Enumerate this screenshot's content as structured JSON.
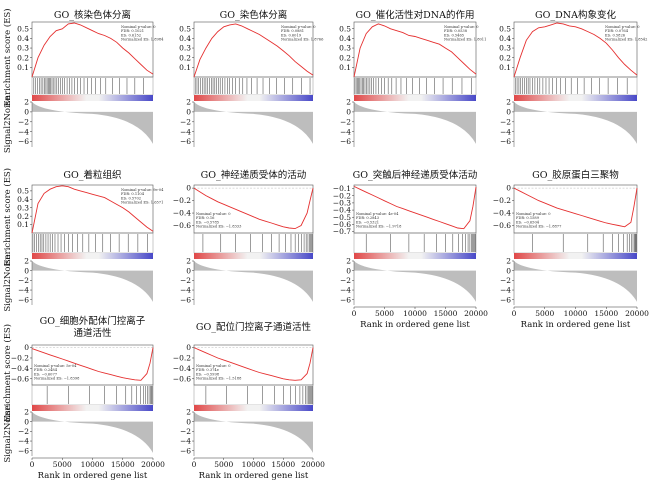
{
  "common": {
    "y_label_es": "Enrichment score (ES)",
    "y_label_noise": "Signal2Noise",
    "x_label": "Rank in ordered gene list",
    "x_ticks": [
      "0",
      "5000",
      "10000",
      "15000",
      "20000"
    ],
    "x_ticks_panel10": [
      "0",
      "5000",
      "10000",
      "15000",
      "20000"
    ],
    "noise_ticks": [
      "2",
      "0",
      "−2",
      "−4",
      "−6"
    ],
    "colors": {
      "curve": "#e53030",
      "noise_fill": "#bdbdbd",
      "ribbon_pos": "#e04848",
      "ribbon_neg": "#4848c8"
    }
  },
  "chart_data": [
    {
      "type": "line",
      "title": "GO_核染色体分离",
      "xlabel": "Rank in ordered gene list",
      "ylabel": "Enrichment score (ES)",
      "xlim": [
        0,
        20000
      ],
      "ylim": [
        0,
        0.57
      ],
      "y_ticks": [
        "0.5",
        "0.4",
        "0.3",
        "0.2",
        "0.1"
      ],
      "stats": [
        "Nominal p-value: 0",
        "FDR: 0.1021",
        "ES: 0.6152",
        "Normalized ES: 1.8984"
      ],
      "x": [
        0,
        1000,
        2000,
        3000,
        4000,
        5000,
        6000,
        7000,
        8000,
        9000,
        10000,
        11000,
        12000,
        13000,
        14000,
        15000,
        16000,
        17000,
        18000,
        19000,
        20000
      ],
      "es": [
        0.0,
        0.2,
        0.33,
        0.42,
        0.48,
        0.5,
        0.55,
        0.56,
        0.54,
        0.51,
        0.48,
        0.45,
        0.43,
        0.4,
        0.36,
        0.3,
        0.25,
        0.19,
        0.13,
        0.07,
        0.03
      ],
      "hits": [
        300,
        600,
        900,
        1200,
        1500,
        1800,
        2100,
        2300,
        2500,
        2700,
        2900,
        3100,
        3300,
        3500,
        3800,
        4100,
        4400,
        4700,
        5000,
        5400,
        5800,
        6200,
        6600,
        7000,
        7500,
        8000,
        8600,
        9200,
        9800,
        10500,
        11300,
        12200,
        13300,
        14500,
        15700,
        17000,
        18400
      ]
    },
    {
      "type": "line",
      "title": "GO_染色体分离",
      "xlabel": "Rank in ordered gene list",
      "ylabel": "Enrichment score (ES)",
      "xlim": [
        0,
        20000
      ],
      "ylim": [
        0,
        0.57
      ],
      "y_ticks": [
        "0.5",
        "0.4",
        "0.3",
        "0.2",
        "0.1"
      ],
      "stats": [
        "Nominal p-value: 0",
        "FDR: 0.0881",
        "ES: 0.6019",
        "Normalized ES: 1.8766"
      ],
      "x": [
        0,
        1000,
        2000,
        3000,
        4000,
        5000,
        6000,
        7000,
        8000,
        9000,
        10000,
        11000,
        12000,
        13000,
        14000,
        15000,
        16000,
        17000,
        18000,
        19000,
        20000
      ],
      "es": [
        0.0,
        0.18,
        0.3,
        0.4,
        0.47,
        0.52,
        0.54,
        0.55,
        0.53,
        0.5,
        0.47,
        0.44,
        0.4,
        0.36,
        0.32,
        0.27,
        0.22,
        0.16,
        0.11,
        0.06,
        0.02
      ],
      "hits": [
        200,
        500,
        800,
        1100,
        1400,
        1700,
        2000,
        2300,
        2600,
        2900,
        3200,
        3500,
        3800,
        4100,
        4400,
        4800,
        5200,
        5600,
        6000,
        6500,
        7000,
        7600,
        8200,
        8900,
        9700,
        10600,
        11600,
        12700,
        13900,
        15200,
        16600,
        18100,
        19500
      ]
    },
    {
      "type": "line",
      "title": "GO_催化活性对DNA的作用",
      "xlabel": "Rank in ordered gene list",
      "ylabel": "Enrichment score (ES)",
      "xlim": [
        0,
        20000
      ],
      "ylim": [
        0,
        0.57
      ],
      "y_ticks": [
        "0.5",
        "0.4",
        "0.3",
        "0.2",
        "0.1"
      ],
      "stats": [
        "Nominal p-value: 0",
        "FDR: 0.0538",
        "ES: 0.5465",
        "Normalized ES: 1.8011"
      ],
      "x": [
        0,
        1000,
        2000,
        3000,
        4000,
        5000,
        6000,
        7000,
        8000,
        9000,
        10000,
        11000,
        12000,
        13000,
        14000,
        15000,
        16000,
        17000,
        18000,
        19000,
        20000
      ],
      "es": [
        0.0,
        0.3,
        0.45,
        0.52,
        0.55,
        0.53,
        0.5,
        0.48,
        0.46,
        0.43,
        0.42,
        0.4,
        0.38,
        0.36,
        0.34,
        0.3,
        0.26,
        0.2,
        0.14,
        0.08,
        0.03
      ],
      "hits": [
        150,
        350,
        550,
        750,
        950,
        1150,
        1350,
        1550,
        1800,
        2050,
        2300,
        2600,
        2900,
        3200,
        3600,
        4000,
        4500,
        5000,
        5600,
        6200,
        6900,
        7700,
        8600,
        9600,
        10700,
        11900,
        13200,
        14600,
        16100,
        17700,
        19300
      ]
    },
    {
      "type": "line",
      "title": "GO_DNA构象变化",
      "xlabel": "Rank in ordered gene list",
      "ylabel": "Enrichment score (ES)",
      "xlim": [
        0,
        20000
      ],
      "ylim": [
        0,
        0.57
      ],
      "y_ticks": [
        "0.5",
        "0.4",
        "0.3",
        "0.2",
        "0.1"
      ],
      "stats": [
        "Nominal p-value: 0",
        "FDR: 0.0764",
        "ES: 0.5826",
        "Normalized ES: 1.8542"
      ],
      "x": [
        0,
        1000,
        2000,
        3000,
        4000,
        5000,
        6000,
        7000,
        8000,
        9000,
        10000,
        11000,
        12000,
        13000,
        14000,
        15000,
        16000,
        17000,
        18000,
        19000,
        20000
      ],
      "es": [
        0.0,
        0.2,
        0.38,
        0.47,
        0.51,
        0.52,
        0.54,
        0.56,
        0.55,
        0.53,
        0.52,
        0.5,
        0.47,
        0.44,
        0.4,
        0.35,
        0.28,
        0.2,
        0.13,
        0.07,
        0.02
      ],
      "hits": [
        200,
        500,
        800,
        1100,
        1400,
        1700,
        2000,
        2300,
        2600,
        3000,
        3400,
        3800,
        4200,
        4700,
        5200,
        5700,
        6300,
        6900,
        7600,
        8400,
        9300,
        10300,
        11400,
        12600,
        13900,
        15300,
        16800,
        18400
      ]
    },
    {
      "type": "line",
      "title": "GO_着粒组织",
      "xlabel": "Rank in ordered gene list",
      "ylabel": "Enrichment score (ES)",
      "xlim": [
        0,
        20000
      ],
      "ylim": [
        0,
        0.57
      ],
      "y_ticks": [
        "0.5",
        "0.4",
        "0.3",
        "0.2",
        "0.1"
      ],
      "stats": [
        "Nominal p-value: 9e-04",
        "FDR: 0.1104",
        "ES: 0.5702",
        "Normalized ES: 1.6571"
      ],
      "x": [
        0,
        1000,
        2000,
        3000,
        4000,
        5000,
        6000,
        7000,
        8000,
        9000,
        10000,
        11000,
        12000,
        13000,
        14000,
        15000,
        16000,
        17000,
        18000,
        19000,
        20000
      ],
      "es": [
        0.0,
        0.35,
        0.47,
        0.52,
        0.55,
        0.56,
        0.55,
        0.52,
        0.5,
        0.48,
        0.46,
        0.44,
        0.42,
        0.38,
        0.34,
        0.3,
        0.25,
        0.19,
        0.13,
        0.07,
        0.02
      ],
      "hits": [
        150,
        450,
        750,
        1050,
        1350,
        1650,
        1950,
        2300,
        2650,
        3000,
        3400,
        3800,
        4300,
        4800,
        5400,
        6000,
        6700,
        7500,
        8400,
        9400,
        10500,
        11700,
        13000,
        14400,
        15900,
        17500,
        19100
      ]
    },
    {
      "type": "line",
      "title": "GO_神经递质受体的活动",
      "xlabel": "Rank in ordered gene list",
      "ylabel": "Enrichment score (ES)",
      "xlim": [
        0,
        20000
      ],
      "ylim": [
        -0.72,
        0.05
      ],
      "y_ticks": [
        "0",
        "−0.2",
        "−0.4",
        "−0.6"
      ],
      "stats": [
        "Nominal p-value: 0",
        "FDR: 0.16",
        "ES: −0.5785",
        "Normalized ES: −1.8333"
      ],
      "x": [
        0,
        1000,
        2000,
        3000,
        4000,
        5000,
        6000,
        7000,
        8000,
        9000,
        10000,
        11000,
        12000,
        13000,
        14000,
        15000,
        16000,
        17000,
        18000,
        19000,
        19500,
        20000
      ],
      "es": [
        0.0,
        -0.06,
        -0.12,
        -0.17,
        -0.22,
        -0.26,
        -0.3,
        -0.34,
        -0.38,
        -0.42,
        -0.46,
        -0.5,
        -0.53,
        -0.56,
        -0.59,
        -0.62,
        -0.64,
        -0.65,
        -0.6,
        -0.4,
        -0.2,
        0.0
      ],
      "hits": [
        1500,
        4500,
        7000,
        9500,
        11500,
        13000,
        14300,
        15400,
        16300,
        17000,
        17600,
        18100,
        18500,
        18850,
        19150,
        19400,
        19600,
        19780,
        19900
      ]
    },
    {
      "type": "line",
      "title": "GO_突触后神经递质受体活动",
      "xlabel": "Rank in ordered gene list",
      "ylabel": "Enrichment score (ES)",
      "xlim": [
        0,
        20000
      ],
      "ylim": [
        -0.72,
        -0.05
      ],
      "y_ticks": [
        "−0.1",
        "−0.2",
        "−0.3",
        "−0.4",
        "−0.5",
        "−0.6",
        "−0.7"
      ],
      "stats": [
        "Nominal p-value: 4e-04",
        "FDR: 0.2843",
        "ES: −0.5321",
        "Normalized ES: −1.9718"
      ],
      "x": [
        0,
        1000,
        2000,
        3000,
        4000,
        5000,
        6000,
        7000,
        8000,
        9000,
        10000,
        11000,
        12000,
        13000,
        14000,
        15000,
        16000,
        17000,
        18000,
        19000,
        19500,
        20000
      ],
      "es": [
        -0.07,
        -0.11,
        -0.15,
        -0.19,
        -0.23,
        -0.27,
        -0.31,
        -0.35,
        -0.38,
        -0.41,
        -0.44,
        -0.47,
        -0.5,
        -0.53,
        -0.56,
        -0.59,
        -0.62,
        -0.65,
        -0.66,
        -0.55,
        -0.35,
        -0.08
      ],
      "hits": [
        2000,
        6000,
        9000,
        11500,
        13500,
        15000,
        16200,
        17100,
        17800,
        18300,
        18700,
        19000,
        19250,
        19450,
        19600,
        19750,
        19880
      ]
    },
    {
      "type": "line",
      "title": "GO_胶原蛋白三聚物",
      "xlabel": "Rank in ordered gene list",
      "ylabel": "Enrichment score (ES)",
      "xlim": [
        0,
        20000
      ],
      "ylim": [
        -0.72,
        0.05
      ],
      "y_ticks": [
        "0",
        "−0.2",
        "−0.4",
        "−0.6"
      ],
      "stats": [
        "Nominal p-value: 0",
        "FDR: 0.1589",
        "ES: −0.6504",
        "Normalized ES: −1.8877"
      ],
      "x": [
        0,
        1000,
        2000,
        3000,
        4000,
        5000,
        6000,
        7000,
        8000,
        9000,
        10000,
        11000,
        12000,
        13000,
        14000,
        15000,
        16000,
        17000,
        18000,
        19000,
        19500,
        20000
      ],
      "es": [
        0.0,
        -0.05,
        -0.1,
        -0.15,
        -0.2,
        -0.24,
        -0.28,
        -0.32,
        -0.35,
        -0.38,
        -0.41,
        -0.44,
        -0.47,
        -0.5,
        -0.53,
        -0.56,
        -0.58,
        -0.6,
        -0.62,
        -0.55,
        -0.3,
        0.0
      ],
      "hits": [
        3000,
        8000,
        12000,
        14500,
        16000,
        17000,
        17800,
        18400,
        18800,
        19100,
        19350,
        19550,
        19700,
        19830,
        19930
      ]
    },
    {
      "type": "line",
      "title": "GO_细胞外配体门控离子",
      "title2": "通道活性",
      "xlabel": "Rank in ordered gene list",
      "ylabel": "Enrichment score (ES)",
      "xlim": [
        0,
        20000
      ],
      "ylim": [
        -0.72,
        0.05
      ],
      "y_ticks": [
        "0",
        "−0.2",
        "−0.4",
        "−0.6"
      ],
      "stats": [
        "Nominal p-value: 5e-04",
        "FDR: 0.2484",
        "ES: −0.6077",
        "Normalized ES: −1.8398"
      ],
      "x": [
        0,
        1000,
        2000,
        3000,
        4000,
        5000,
        6000,
        7000,
        8000,
        9000,
        10000,
        11000,
        12000,
        13000,
        14000,
        15000,
        16000,
        17000,
        18000,
        19000,
        19500,
        20000
      ],
      "es": [
        -0.02,
        -0.06,
        -0.1,
        -0.14,
        -0.18,
        -0.22,
        -0.26,
        -0.3,
        -0.34,
        -0.38,
        -0.42,
        -0.46,
        -0.49,
        -0.52,
        -0.55,
        -0.58,
        -0.6,
        -0.62,
        -0.63,
        -0.5,
        -0.3,
        0.0
      ],
      "hits": [
        2500,
        6000,
        9500,
        12000,
        14000,
        15500,
        16500,
        17300,
        17900,
        18400,
        18800,
        19100,
        19350,
        19550,
        19720,
        19860
      ]
    },
    {
      "type": "line",
      "title": "GO_配位门控离子通道活性",
      "xlabel": "Rank in ordered gene list",
      "ylabel": "Enrichment score (ES)",
      "xlim": [
        0,
        20000
      ],
      "ylim": [
        -0.72,
        0.05
      ],
      "y_ticks": [
        "0",
        "−0.2",
        "−0.4",
        "−0.6"
      ],
      "stats": [
        "Nominal p-value: 0",
        "FDR: 0.374e",
        "ES: −0.5998",
        "Normalized ES: −1.5188"
      ],
      "x": [
        0,
        1000,
        2000,
        3000,
        4000,
        5000,
        6000,
        7000,
        8000,
        9000,
        10000,
        11000,
        12000,
        13000,
        14000,
        15000,
        16000,
        17000,
        18000,
        19000,
        19500,
        20000
      ],
      "es": [
        0.0,
        -0.05,
        -0.1,
        -0.15,
        -0.2,
        -0.24,
        -0.28,
        -0.32,
        -0.36,
        -0.4,
        -0.44,
        -0.48,
        -0.51,
        -0.54,
        -0.57,
        -0.6,
        -0.62,
        -0.63,
        -0.62,
        -0.5,
        -0.3,
        0.0
      ],
      "hits": [
        2000,
        5500,
        9000,
        11500,
        13500,
        15000,
        16200,
        17100,
        17800,
        18300,
        18700,
        19000,
        19250,
        19450,
        19620,
        19780,
        19900
      ]
    }
  ]
}
